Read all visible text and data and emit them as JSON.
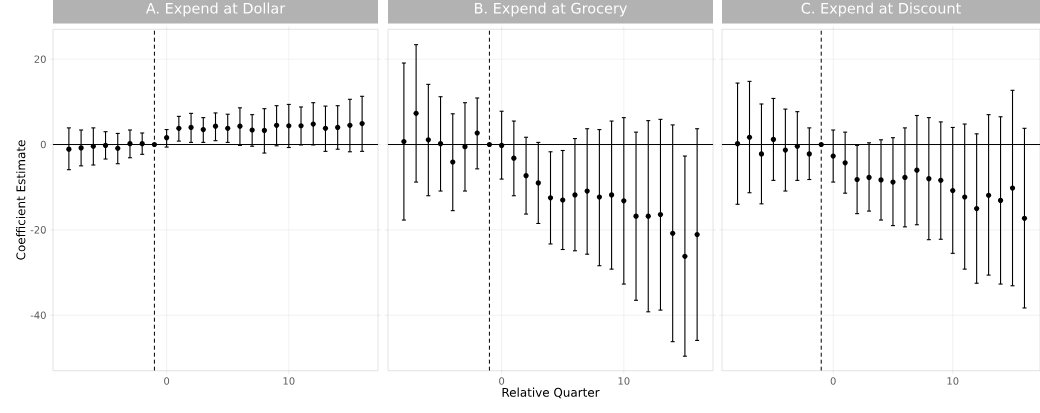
{
  "chart_data": [
    {
      "type": "scatter",
      "title": "A. Expend at Dollar",
      "ylabel": "Coefficient Estimate",
      "color": "#000000",
      "marker": "circle",
      "grid": true,
      "x": [
        -8,
        -7,
        -6,
        -5,
        -4,
        -3,
        -2,
        -1,
        0,
        1,
        2,
        3,
        4,
        5,
        6,
        7,
        8,
        9,
        10,
        11,
        12,
        13,
        14,
        15,
        16
      ],
      "values": [
        -1.1,
        -0.8,
        -0.4,
        -0.2,
        -0.9,
        0.2,
        0.2,
        0,
        1.6,
        3.8,
        4.0,
        3.5,
        4.3,
        3.8,
        4.3,
        3.4,
        3.3,
        4.5,
        4.4,
        4.4,
        4.8,
        3.8,
        4.0,
        4.5,
        4.9
      ],
      "errors": [
        [
          -5.9,
          3.9
        ],
        [
          -5.0,
          3.4
        ],
        [
          -4.8,
          3.9
        ],
        [
          -3.4,
          3.0
        ],
        [
          -4.5,
          2.6
        ],
        [
          -3.1,
          3.4
        ],
        [
          -2.3,
          2.7
        ],
        null,
        [
          -0.6,
          3.5
        ],
        [
          0.8,
          6.6
        ],
        [
          0.5,
          7.3
        ],
        [
          0.5,
          6.3
        ],
        [
          0.9,
          7.4
        ],
        [
          0.5,
          7.1
        ],
        [
          -0.2,
          8.6
        ],
        [
          -0.4,
          7.0
        ],
        [
          -2.0,
          8.4
        ],
        [
          -0.3,
          9.1
        ],
        [
          -0.7,
          9.4
        ],
        [
          -0.1,
          8.8
        ],
        [
          -0.1,
          9.8
        ],
        [
          -1.6,
          9.0
        ],
        [
          -1.1,
          9.1
        ],
        [
          -1.7,
          10.6
        ],
        [
          -1.6,
          11.3
        ]
      ],
      "xlim": [
        -9.3,
        17.3
      ],
      "ylim": [
        -53,
        27
      ],
      "xticks": [
        0,
        10
      ],
      "yticks": [
        -40,
        -20,
        0,
        20
      ],
      "ref_lines": [
        {
          "axis": "y",
          "value": 0,
          "line_style": "solid"
        },
        {
          "axis": "x",
          "value": -1,
          "line_style": "dashed"
        }
      ]
    },
    {
      "type": "scatter",
      "title": "B. Expend at Grocery",
      "xlabel": "Relative Quarter",
      "color": "#000000",
      "marker": "circle",
      "grid": true,
      "tick_labels": "x",
      "x": [
        -8,
        -7,
        -6,
        -5,
        -4,
        -3,
        -2,
        -1,
        0,
        1,
        2,
        3,
        4,
        5,
        6,
        7,
        8,
        9,
        10,
        11,
        12,
        13,
        14,
        15,
        16
      ],
      "values": [
        0.7,
        7.3,
        1.1,
        0.2,
        -4.1,
        -0.5,
        2.7,
        0,
        -0.2,
        -3.2,
        -7.3,
        -9.0,
        -12.5,
        -13.0,
        -11.8,
        -10.9,
        -12.3,
        -11.8,
        -13.2,
        -16.8,
        -16.8,
        -16.4,
        -20.8,
        -26.2,
        -21.1
      ],
      "errors": [
        [
          -17.7,
          19.1
        ],
        [
          -8.8,
          23.4
        ],
        [
          -12.0,
          14.1
        ],
        [
          -10.9,
          11.2
        ],
        [
          -15.5,
          7.2
        ],
        [
          -10.9,
          9.8
        ],
        [
          -5.7,
          10.9
        ],
        null,
        [
          -8.1,
          7.8
        ],
        [
          -12.0,
          5.5
        ],
        [
          -16.3,
          1.7
        ],
        [
          -18.5,
          0.5
        ],
        [
          -23.3,
          -1.7
        ],
        [
          -24.6,
          -1.4
        ],
        [
          -24.9,
          1.4
        ],
        [
          -25.7,
          3.7
        ],
        [
          -28.4,
          3.5
        ],
        [
          -29.2,
          5.5
        ],
        [
          -32.7,
          6.3
        ],
        [
          -36.5,
          2.9
        ],
        [
          -39.2,
          5.6
        ],
        [
          -38.8,
          5.9
        ],
        [
          -46.2,
          4.6
        ],
        [
          -49.6,
          -2.7
        ],
        [
          -45.9,
          3.7
        ]
      ],
      "xlim": [
        -9.3,
        17.3
      ],
      "ylim": [
        -53,
        27
      ],
      "xticks": [
        0,
        10
      ],
      "yticks": [
        -40,
        -20,
        0,
        20
      ],
      "ref_lines": [
        {
          "axis": "y",
          "value": 0,
          "line_style": "solid"
        },
        {
          "axis": "x",
          "value": -1,
          "line_style": "dashed"
        }
      ]
    },
    {
      "type": "scatter",
      "title": "C. Expend at Discount",
      "color": "#000000",
      "marker": "circle",
      "grid": true,
      "tick_labels": "x",
      "x": [
        -8,
        -7,
        -6,
        -5,
        -4,
        -3,
        -2,
        -1,
        0,
        1,
        2,
        3,
        4,
        5,
        6,
        7,
        8,
        9,
        10,
        11,
        12,
        13,
        14,
        15,
        16
      ],
      "values": [
        0.2,
        1.7,
        -2.2,
        1.2,
        -1.3,
        -0.4,
        -2.2,
        0,
        -2.7,
        -4.3,
        -8.2,
        -7.7,
        -8.3,
        -8.8,
        -7.7,
        -6.0,
        -8.0,
        -8.4,
        -10.8,
        -12.3,
        -15.0,
        -11.9,
        -13.1,
        -10.2,
        -17.3
      ],
      "errors": [
        [
          -14.0,
          14.4
        ],
        [
          -11.3,
          14.8
        ],
        [
          -13.9,
          9.5
        ],
        [
          -8.4,
          10.8
        ],
        [
          -10.9,
          8.3
        ],
        [
          -8.4,
          7.7
        ],
        [
          -8.2,
          3.9
        ],
        null,
        [
          -8.8,
          3.4
        ],
        [
          -11.4,
          2.9
        ],
        [
          -16.2,
          -0.2
        ],
        [
          -15.6,
          0.4
        ],
        [
          -17.7,
          1.1
        ],
        [
          -19.0,
          1.6
        ],
        [
          -19.3,
          3.9
        ],
        [
          -18.8,
          6.8
        ],
        [
          -22.3,
          6.3
        ],
        [
          -22.2,
          5.3
        ],
        [
          -25.5,
          4.0
        ],
        [
          -29.2,
          4.8
        ],
        [
          -32.5,
          2.5
        ],
        [
          -30.6,
          7.0
        ],
        [
          -32.7,
          6.5
        ],
        [
          -33.1,
          12.7
        ],
        [
          -38.3,
          3.8
        ]
      ],
      "xlim": [
        -9.3,
        17.3
      ],
      "ylim": [
        -53,
        27
      ],
      "xticks": [
        0,
        10
      ],
      "yticks": [
        -40,
        -20,
        0,
        20
      ],
      "ref_lines": [
        {
          "axis": "y",
          "value": 0,
          "line_style": "solid"
        },
        {
          "axis": "x",
          "value": -1,
          "line_style": "dashed"
        }
      ]
    }
  ]
}
